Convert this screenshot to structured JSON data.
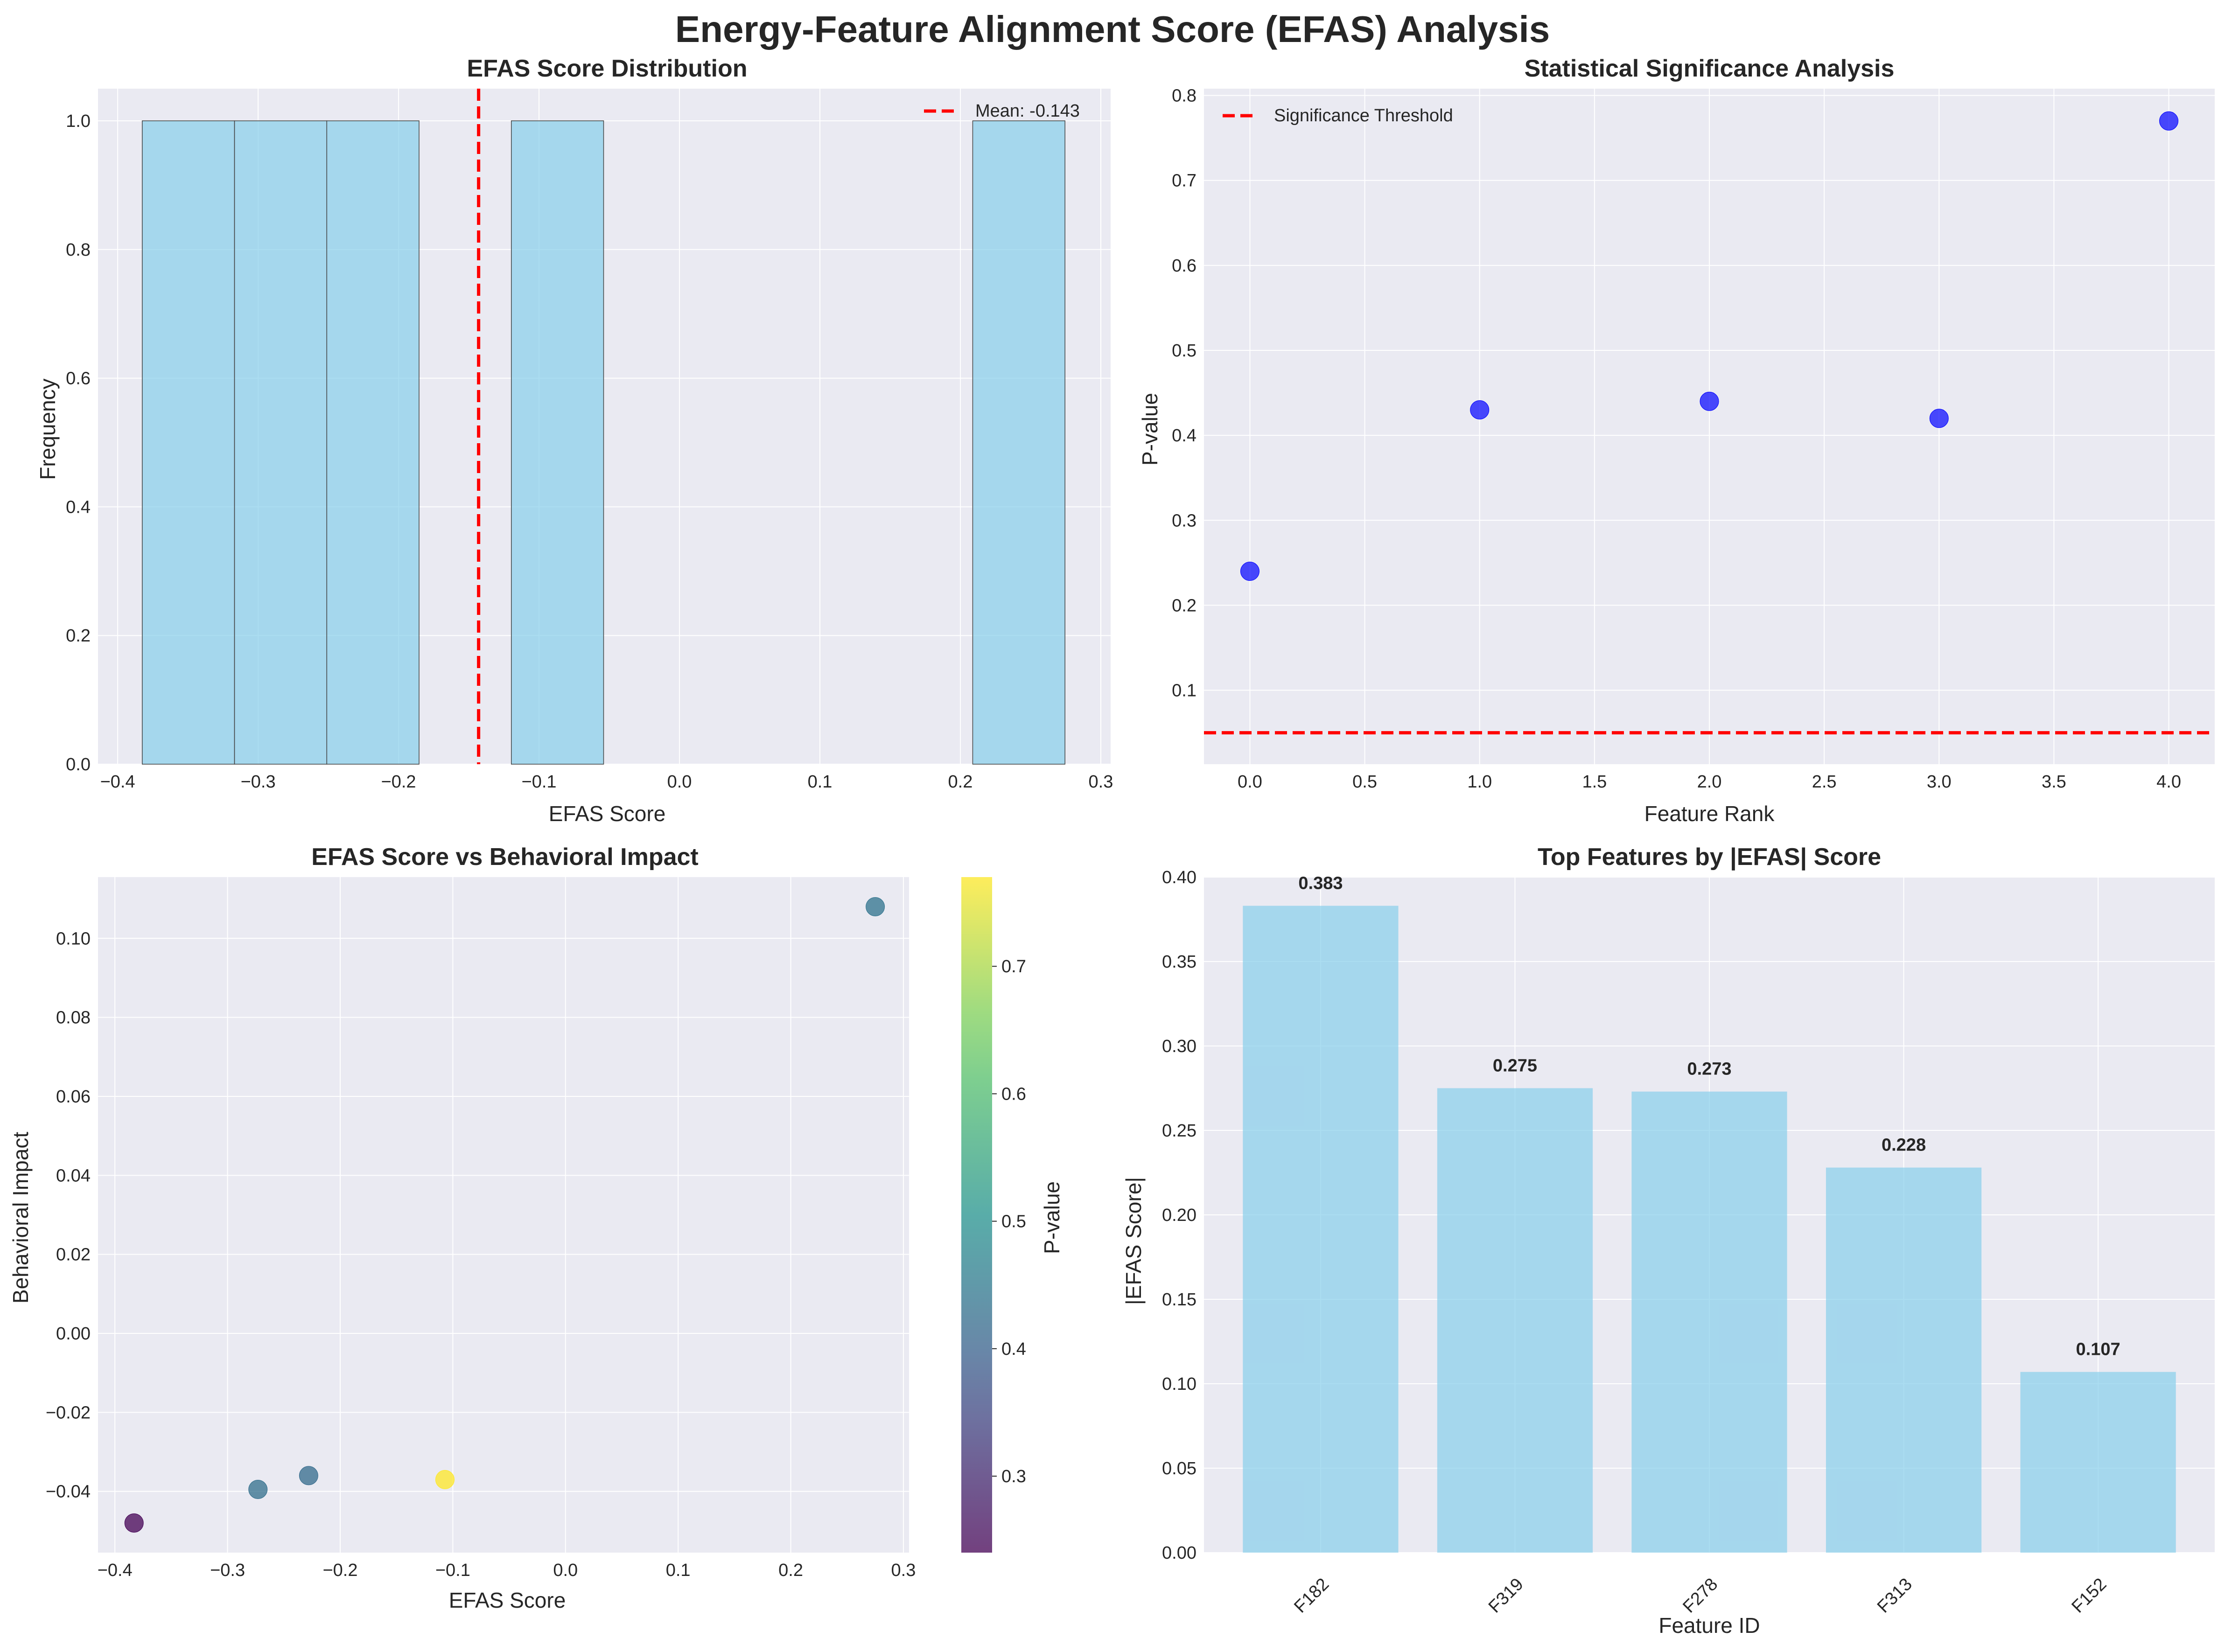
{
  "figure": {
    "title": "Energy-Feature Alignment Score (EFAS) Analysis"
  },
  "colors": {
    "axes_bg": "#eaeaf2",
    "grid": "#ffffff",
    "bar": "#87ceeb",
    "bar_edge": "#444444",
    "mean_line": "#ff0000",
    "scatter_point": "#0000ff",
    "text": "#262626"
  },
  "chart_data": [
    {
      "id": "hist",
      "type": "bar",
      "title": "EFAS Score Distribution",
      "xlabel": "EFAS Score",
      "ylabel": "Frequency",
      "xlim": [
        -0.414,
        0.307
      ],
      "ylim": [
        0,
        1.05
      ],
      "xticks": [
        -0.4,
        -0.3,
        -0.2,
        -0.1,
        0.0,
        0.1,
        0.2,
        0.3
      ],
      "xtick_labels": [
        "−0.4",
        "−0.3",
        "−0.2",
        "−0.1",
        "0.0",
        "0.1",
        "0.2",
        "0.3"
      ],
      "yticks": [
        0.0,
        0.2,
        0.4,
        0.6,
        0.8,
        1.0
      ],
      "ytick_labels": [
        "0.0",
        "0.2",
        "0.4",
        "0.6",
        "0.8",
        "1.0"
      ],
      "bins": [
        {
          "x0": -0.3825,
          "x1": -0.3168,
          "count": 1
        },
        {
          "x0": -0.3168,
          "x1": -0.2511,
          "count": 1
        },
        {
          "x0": -0.2511,
          "x1": -0.1854,
          "count": 1
        },
        {
          "x0": -0.1197,
          "x1": -0.054,
          "count": 1
        },
        {
          "x0": 0.2088,
          "x1": 0.2745,
          "count": 1
        }
      ],
      "mean": -0.143,
      "legend": {
        "label": "Mean: -0.143",
        "position": "upper right"
      }
    },
    {
      "id": "pvals",
      "type": "scatter",
      "title": "Statistical Significance Analysis",
      "xlabel": "Feature Rank",
      "ylabel": "P-value",
      "xlim": [
        -0.2,
        4.2
      ],
      "ylim": [
        0.013,
        0.808
      ],
      "xticks": [
        0,
        0.5,
        1,
        1.5,
        2,
        2.5,
        3,
        3.5,
        4
      ],
      "xtick_labels": [
        "0.0",
        "0.5",
        "1.0",
        "1.5",
        "2.0",
        "2.5",
        "3.0",
        "3.5",
        "4.0"
      ],
      "yticks": [
        0.1,
        0.2,
        0.3,
        0.4,
        0.5,
        0.6,
        0.7,
        0.8
      ],
      "ytick_labels": [
        "0.1",
        "0.2",
        "0.3",
        "0.4",
        "0.5",
        "0.6",
        "0.7",
        "0.8"
      ],
      "x": [
        0,
        1,
        2,
        3,
        4
      ],
      "y": [
        0.24,
        0.43,
        0.44,
        0.42,
        0.77
      ],
      "threshold": 0.05,
      "legend": {
        "label": "Significance Threshold",
        "position": "upper left"
      }
    },
    {
      "id": "impact",
      "type": "scatter",
      "title": "EFAS Score vs Behavioral Impact",
      "xlabel": "EFAS Score",
      "ylabel": "Behavioral Impact",
      "xlim": [
        -0.415,
        0.305
      ],
      "ylim": [
        -0.0555,
        0.1155
      ],
      "xticks": [
        -0.4,
        -0.3,
        -0.2,
        -0.1,
        0.0,
        0.1,
        0.2,
        0.3
      ],
      "xtick_labels": [
        "−0.4",
        "−0.3",
        "−0.2",
        "−0.1",
        "0.0",
        "0.1",
        "0.2",
        "0.3"
      ],
      "yticks": [
        -0.04,
        -0.02,
        0.0,
        0.02,
        0.04,
        0.06,
        0.08,
        0.1
      ],
      "ytick_labels": [
        "−0.04",
        "−0.02",
        "0.00",
        "0.02",
        "0.04",
        "0.06",
        "0.08",
        "0.10"
      ],
      "points": [
        {
          "x": -0.383,
          "y": -0.048,
          "p": 0.24
        },
        {
          "x": -0.273,
          "y": -0.0395,
          "p": 0.43
        },
        {
          "x": -0.228,
          "y": -0.036,
          "p": 0.42
        },
        {
          "x": -0.107,
          "y": -0.037,
          "p": 0.77
        },
        {
          "x": 0.275,
          "y": 0.108,
          "p": 0.44
        }
      ],
      "colorbar": {
        "label": "P-value",
        "range": [
          0.24,
          0.77
        ],
        "ticks": [
          0.3,
          0.4,
          0.5,
          0.6,
          0.7
        ],
        "tick_labels": [
          "0.3",
          "0.4",
          "0.5",
          "0.6",
          "0.7"
        ],
        "colormap": "viridis"
      }
    },
    {
      "id": "top",
      "type": "bar",
      "title": "Top Features by |EFAS| Score",
      "xlabel": "Feature ID",
      "ylabel": "|EFAS Score|",
      "ylim": [
        0,
        0.4
      ],
      "yticks": [
        0.0,
        0.05,
        0.1,
        0.15,
        0.2,
        0.25,
        0.3,
        0.35,
        0.4
      ],
      "ytick_labels": [
        "0.00",
        "0.05",
        "0.10",
        "0.15",
        "0.20",
        "0.25",
        "0.30",
        "0.35",
        "0.40"
      ],
      "categories": [
        "F182",
        "F319",
        "F278",
        "F313",
        "F152"
      ],
      "values": [
        0.383,
        0.275,
        0.273,
        0.228,
        0.107
      ],
      "value_labels": [
        "0.383",
        "0.275",
        "0.273",
        "0.228",
        "0.107"
      ]
    }
  ]
}
